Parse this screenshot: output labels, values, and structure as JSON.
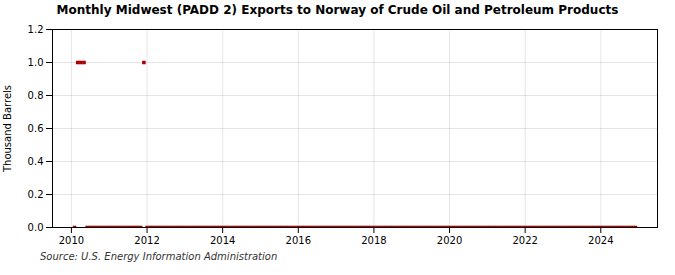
{
  "chart_data": {
    "type": "scatter",
    "title": "Monthly Midwest (PADD 2) Exports to Norway of Crude Oil and Petroleum Products",
    "ylabel": "Thousand Barrels",
    "annotation": "Source: U.S. Energy Information Administration",
    "color": "#aa0000",
    "marker": "square",
    "grid": true,
    "xlim": [
      2009.5,
      2025.5
    ],
    "xticks": [
      2010,
      2012,
      2014,
      2016,
      2018,
      2020,
      2022,
      2024
    ],
    "ylim": [
      0.0,
      1.2
    ],
    "yticks": [
      {
        "value": 0.0,
        "label": "0.0"
      },
      0.2,
      0.4,
      0.6,
      0.8,
      {
        "value": 1.0,
        "label": "1.0"
      },
      1.2
    ],
    "x": [
      2010.0833,
      2010.1667,
      2010.25,
      2010.3333,
      2010.4167,
      2010.5,
      2010.5833,
      2010.6667,
      2010.75,
      2010.8333,
      2010.9167,
      2011.0,
      2011.0833,
      2011.1667,
      2011.25,
      2011.3333,
      2011.4167,
      2011.5,
      2011.5833,
      2011.6667,
      2011.75,
      2011.8333,
      2011.9167,
      2012.0,
      2012.0833,
      2012.1667,
      2012.25,
      2012.3333,
      2012.4167,
      2012.5,
      2012.5833,
      2012.6667,
      2012.75,
      2012.8333,
      2012.9167,
      2013.0,
      2013.0833,
      2013.1667,
      2013.25,
      2013.3333,
      2013.4167,
      2013.5,
      2013.5833,
      2013.6667,
      2013.75,
      2013.8333,
      2013.9167,
      2014.0,
      2014.0833,
      2014.1667,
      2014.25,
      2014.3333,
      2014.4167,
      2014.5,
      2014.5833,
      2014.6667,
      2014.75,
      2014.8333,
      2014.9167,
      2015.0,
      2015.0833,
      2015.1667,
      2015.25,
      2015.3333,
      2015.4167,
      2015.5,
      2015.5833,
      2015.6667,
      2015.75,
      2015.8333,
      2015.9167,
      2016.0,
      2016.0833,
      2016.1667,
      2016.25,
      2016.3333,
      2016.4167,
      2016.5,
      2016.5833,
      2016.6667,
      2016.75,
      2016.8333,
      2016.9167,
      2017.0,
      2017.0833,
      2017.1667,
      2017.25,
      2017.3333,
      2017.4167,
      2017.5,
      2017.5833,
      2017.6667,
      2017.75,
      2017.8333,
      2017.9167,
      2018.0,
      2018.0833,
      2018.1667,
      2018.25,
      2018.3333,
      2018.4167,
      2018.5,
      2018.5833,
      2018.6667,
      2018.75,
      2018.8333,
      2018.9167,
      2019.0,
      2019.0833,
      2019.1667,
      2019.25,
      2019.3333,
      2019.4167,
      2019.5,
      2019.5833,
      2019.6667,
      2019.75,
      2019.8333,
      2019.9167,
      2020.0,
      2020.0833,
      2020.1667,
      2020.25,
      2020.3333,
      2020.4167,
      2020.5,
      2020.5833,
      2020.6667,
      2020.75,
      2020.8333,
      2020.9167,
      2021.0,
      2021.0833,
      2021.1667,
      2021.25,
      2021.3333,
      2021.4167,
      2021.5,
      2021.5833,
      2021.6667,
      2021.75,
      2021.8333,
      2021.9167,
      2022.0,
      2022.0833,
      2022.1667,
      2022.25,
      2022.3333,
      2022.4167,
      2022.5,
      2022.5833,
      2022.6667,
      2022.75,
      2022.8333,
      2022.9167,
      2023.0,
      2023.0833,
      2023.1667,
      2023.25,
      2023.3333,
      2023.4167,
      2023.5,
      2023.5833,
      2023.6667,
      2023.75,
      2023.8333,
      2023.9167,
      2024.0,
      2024.0833,
      2024.1667,
      2024.25,
      2024.3333,
      2024.4167,
      2024.5,
      2024.5833,
      2024.6667,
      2024.75,
      2024.8333,
      2024.9167
    ],
    "values": [
      0.0,
      1.0,
      1.0,
      1.0,
      0.0,
      0.0,
      0.0,
      0.0,
      0.0,
      0.0,
      0.0,
      0.0,
      0.0,
      0.0,
      0.0,
      0.0,
      0.0,
      0.0,
      0.0,
      0.0,
      0.0,
      0.0,
      1.0,
      0.0,
      0.0,
      0.0,
      0.0,
      0.0,
      0.0,
      0.0,
      0.0,
      0.0,
      0.0,
      0.0,
      0.0,
      0.0,
      0.0,
      0.0,
      0.0,
      0.0,
      0.0,
      0.0,
      0.0,
      0.0,
      0.0,
      0.0,
      0.0,
      0.0,
      0.0,
      0.0,
      0.0,
      0.0,
      0.0,
      0.0,
      0.0,
      0.0,
      0.0,
      0.0,
      0.0,
      0.0,
      0.0,
      0.0,
      0.0,
      0.0,
      0.0,
      0.0,
      0.0,
      0.0,
      0.0,
      0.0,
      0.0,
      0.0,
      0.0,
      0.0,
      0.0,
      0.0,
      0.0,
      0.0,
      0.0,
      0.0,
      0.0,
      0.0,
      0.0,
      0.0,
      0.0,
      0.0,
      0.0,
      0.0,
      0.0,
      0.0,
      0.0,
      0.0,
      0.0,
      0.0,
      0.0,
      0.0,
      0.0,
      0.0,
      0.0,
      0.0,
      0.0,
      0.0,
      0.0,
      0.0,
      0.0,
      0.0,
      0.0,
      0.0,
      0.0,
      0.0,
      0.0,
      0.0,
      0.0,
      0.0,
      0.0,
      0.0,
      0.0,
      0.0,
      0.0,
      0.0,
      0.0,
      0.0,
      0.0,
      0.0,
      0.0,
      0.0,
      0.0,
      0.0,
      0.0,
      0.0,
      0.0,
      0.0,
      0.0,
      0.0,
      0.0,
      0.0,
      0.0,
      0.0,
      0.0,
      0.0,
      0.0,
      0.0,
      0.0,
      0.0,
      0.0,
      0.0,
      0.0,
      0.0,
      0.0,
      0.0,
      0.0,
      0.0,
      0.0,
      0.0,
      0.0,
      0.0,
      0.0,
      0.0,
      0.0,
      0.0,
      0.0,
      0.0,
      0.0,
      0.0,
      0.0,
      0.0,
      0.0,
      0.0,
      0.0,
      0.0,
      0.0,
      0.0,
      0.0,
      0.0,
      0.0,
      0.0,
      0.0,
      0.0,
      0.0
    ]
  }
}
